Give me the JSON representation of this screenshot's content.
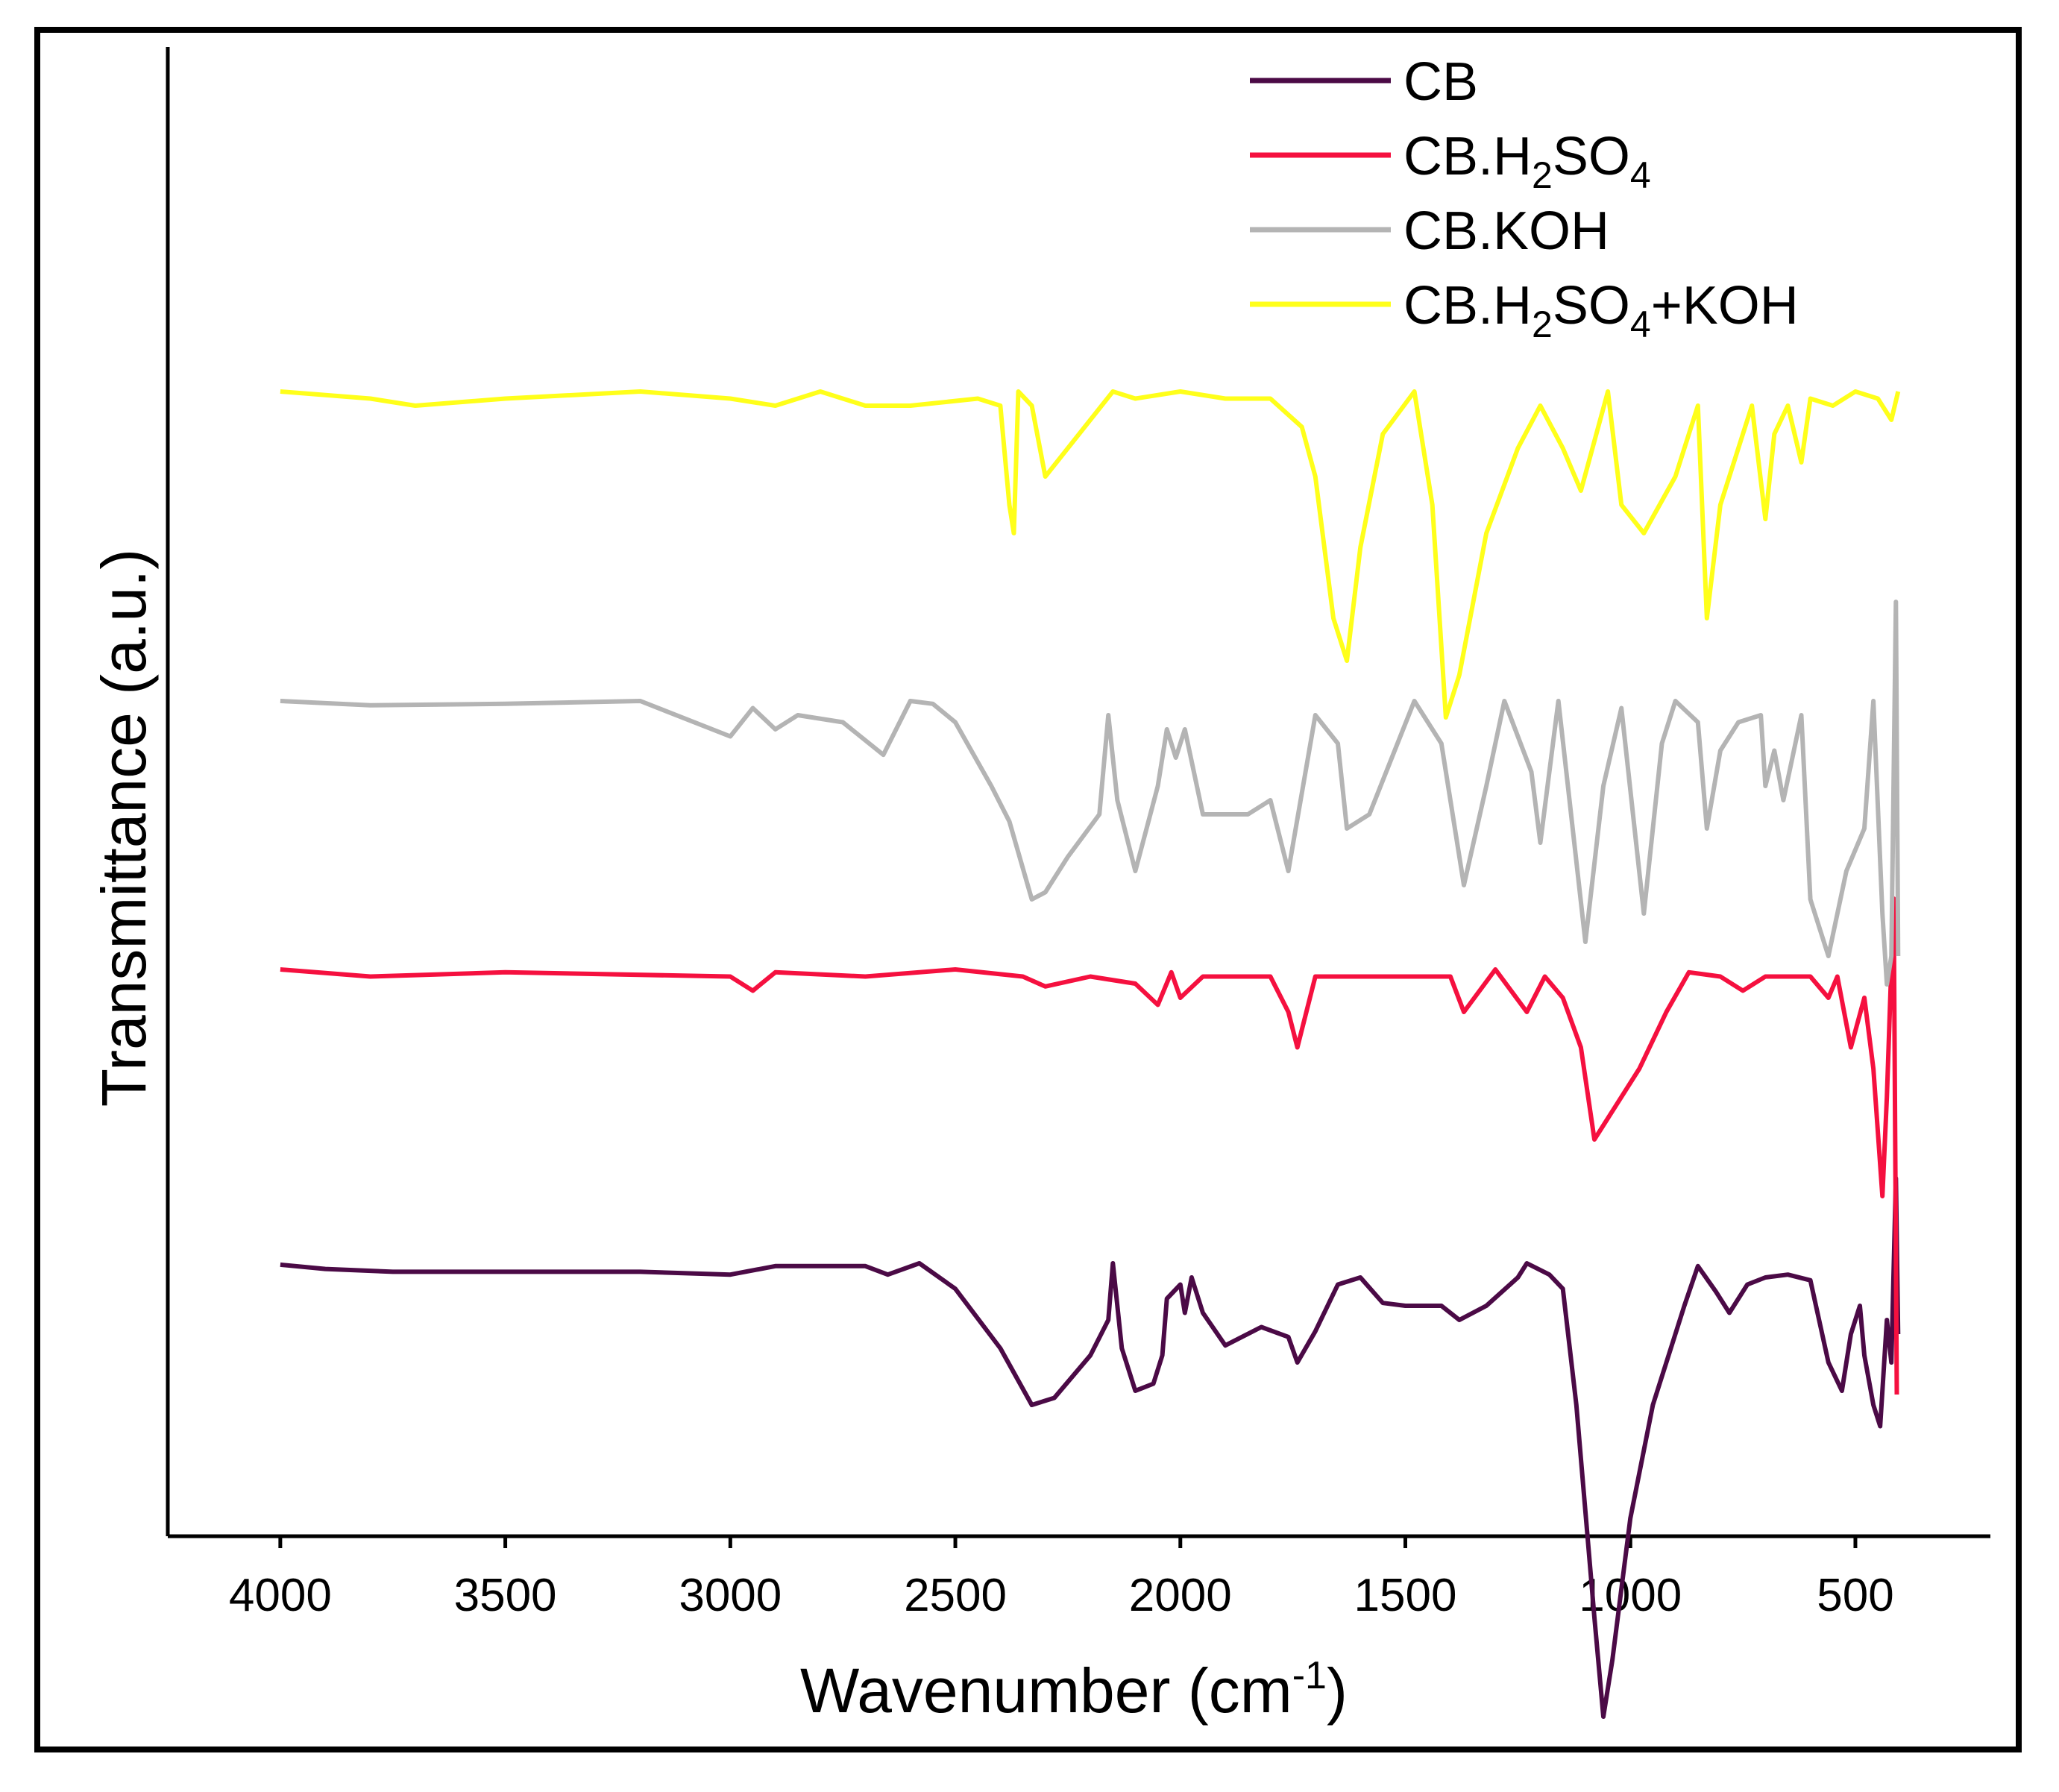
{
  "chart_data": {
    "type": "line",
    "title": "",
    "xlabel": "Wavenumber (cm⁻¹)",
    "xlabel_main": "Wavenumber (cm",
    "xlabel_sup": "-1",
    "xlabel_close": ")",
    "ylabel": "Transmittance (a.u.)",
    "xlim": [
      4250,
      200
    ],
    "x_reversed": true,
    "xticks": [
      4000,
      3500,
      3000,
      2500,
      2000,
      1500,
      1000,
      500
    ],
    "xtick_labels": [
      "4000",
      "3500",
      "3000",
      "2500",
      "2000",
      "1500",
      "1000",
      "500"
    ],
    "yticks_shown": false,
    "grid": false,
    "legend_position": "top-right",
    "series": [
      {
        "name": "CB",
        "legend_label": "CB",
        "color": "#4B0A46",
        "points": [
          [
            4000,
            0.11
          ],
          [
            3900,
            0.14
          ],
          [
            3750,
            0.16
          ],
          [
            3500,
            0.16
          ],
          [
            3200,
            0.16
          ],
          [
            3000,
            0.18
          ],
          [
            2900,
            0.12
          ],
          [
            2700,
            0.12
          ],
          [
            2650,
            0.18
          ],
          [
            2580,
            0.1
          ],
          [
            2500,
            0.28
          ],
          [
            2400,
            0.7
          ],
          [
            2330,
            1.1
          ],
          [
            2280,
            1.05
          ],
          [
            2200,
            0.75
          ],
          [
            2160,
            0.5
          ],
          [
            2150,
            0.1
          ],
          [
            2130,
            0.7
          ],
          [
            2100,
            1.0
          ],
          [
            2060,
            0.95
          ],
          [
            2040,
            0.75
          ],
          [
            2030,
            0.35
          ],
          [
            2000,
            0.25
          ],
          [
            1990,
            0.45
          ],
          [
            1975,
            0.2
          ],
          [
            1950,
            0.45
          ],
          [
            1900,
            0.68
          ],
          [
            1820,
            0.55
          ],
          [
            1760,
            0.62
          ],
          [
            1740,
            0.8
          ],
          [
            1700,
            0.58
          ],
          [
            1650,
            0.25
          ],
          [
            1600,
            0.2
          ],
          [
            1550,
            0.38
          ],
          [
            1500,
            0.4
          ],
          [
            1420,
            0.4
          ],
          [
            1380,
            0.5
          ],
          [
            1320,
            0.4
          ],
          [
            1250,
            0.2
          ],
          [
            1230,
            0.1
          ],
          [
            1180,
            0.18
          ],
          [
            1150,
            0.28
          ],
          [
            1120,
            1.1
          ],
          [
            1080,
            2.6
          ],
          [
            1060,
            3.3
          ],
          [
            1040,
            2.9
          ],
          [
            1000,
            1.9
          ],
          [
            950,
            1.1
          ],
          [
            880,
            0.4
          ],
          [
            850,
            0.12
          ],
          [
            810,
            0.3
          ],
          [
            780,
            0.45
          ],
          [
            740,
            0.25
          ],
          [
            700,
            0.2
          ],
          [
            650,
            0.18
          ],
          [
            600,
            0.22
          ],
          [
            560,
            0.8
          ],
          [
            530,
            1.0
          ],
          [
            510,
            0.6
          ],
          [
            490,
            0.4
          ],
          [
            480,
            0.75
          ],
          [
            460,
            1.1
          ],
          [
            445,
            1.25
          ],
          [
            430,
            0.5
          ],
          [
            420,
            0.8
          ],
          [
            410,
            -0.5
          ],
          [
            405,
            0.6
          ]
        ]
      },
      {
        "name": "CB.H2SO4",
        "legend_main": "CB.H",
        "legend_sub1": "2",
        "legend_mid": "SO",
        "legend_sub2": "4",
        "legend_tail": "",
        "color": "#F5103F",
        "points": [
          [
            4000,
            0.0
          ],
          [
            3800,
            0.05
          ],
          [
            3700,
            0.04
          ],
          [
            3500,
            0.02
          ],
          [
            3000,
            0.05
          ],
          [
            2950,
            0.15
          ],
          [
            2900,
            0.02
          ],
          [
            2700,
            0.05
          ],
          [
            2500,
            0.0
          ],
          [
            2350,
            0.05
          ],
          [
            2300,
            0.12
          ],
          [
            2200,
            0.05
          ],
          [
            2100,
            0.1
          ],
          [
            2050,
            0.25
          ],
          [
            2020,
            0.02
          ],
          [
            2000,
            0.2
          ],
          [
            1950,
            0.05
          ],
          [
            1800,
            0.05
          ],
          [
            1760,
            0.3
          ],
          [
            1740,
            0.55
          ],
          [
            1700,
            0.05
          ],
          [
            1500,
            0.05
          ],
          [
            1400,
            0.05
          ],
          [
            1370,
            0.3
          ],
          [
            1300,
            0.0
          ],
          [
            1230,
            0.3
          ],
          [
            1190,
            0.05
          ],
          [
            1150,
            0.2
          ],
          [
            1110,
            0.55
          ],
          [
            1080,
            1.2
          ],
          [
            1050,
            1.05
          ],
          [
            980,
            0.7
          ],
          [
            920,
            0.3
          ],
          [
            870,
            0.02
          ],
          [
            800,
            0.05
          ],
          [
            750,
            0.15
          ],
          [
            700,
            0.05
          ],
          [
            600,
            0.05
          ],
          [
            560,
            0.2
          ],
          [
            540,
            0.05
          ],
          [
            510,
            0.55
          ],
          [
            480,
            0.2
          ],
          [
            460,
            0.7
          ],
          [
            440,
            1.6
          ],
          [
            430,
            0.9
          ],
          [
            415,
            -0.5
          ],
          [
            408,
            3.0
          ]
        ]
      },
      {
        "name": "CB.KOH",
        "legend_main": "CB.KOH",
        "color": "#B4B4B4",
        "points": [
          [
            4000,
            0.0
          ],
          [
            3800,
            0.03
          ],
          [
            3500,
            0.02
          ],
          [
            3200,
            0.0
          ],
          [
            3000,
            0.25
          ],
          [
            2950,
            0.05
          ],
          [
            2900,
            0.2
          ],
          [
            2850,
            0.1
          ],
          [
            2750,
            0.15
          ],
          [
            2660,
            0.38
          ],
          [
            2600,
            0.0
          ],
          [
            2550,
            0.02
          ],
          [
            2500,
            0.15
          ],
          [
            2420,
            0.6
          ],
          [
            2380,
            0.85
          ],
          [
            2330,
            1.4
          ],
          [
            2300,
            1.35
          ],
          [
            2250,
            1.1
          ],
          [
            2180,
            0.8
          ],
          [
            2160,
            0.1
          ],
          [
            2140,
            0.7
          ],
          [
            2100,
            1.2
          ],
          [
            2050,
            0.6
          ],
          [
            2030,
            0.2
          ],
          [
            2010,
            0.4
          ],
          [
            1990,
            0.2
          ],
          [
            1950,
            0.8
          ],
          [
            1850,
            0.8
          ],
          [
            1800,
            0.7
          ],
          [
            1760,
            1.2
          ],
          [
            1700,
            0.1
          ],
          [
            1650,
            0.3
          ],
          [
            1630,
            0.9
          ],
          [
            1580,
            0.8
          ],
          [
            1480,
            0.0
          ],
          [
            1420,
            0.3
          ],
          [
            1370,
            1.3
          ],
          [
            1320,
            0.6
          ],
          [
            1280,
            0.0
          ],
          [
            1220,
            0.5
          ],
          [
            1200,
            1.0
          ],
          [
            1160,
            0.0
          ],
          [
            1100,
            1.7
          ],
          [
            1060,
            0.6
          ],
          [
            1020,
            0.05
          ],
          [
            970,
            1.5
          ],
          [
            930,
            0.3
          ],
          [
            900,
            0.0
          ],
          [
            850,
            0.15
          ],
          [
            830,
            0.9
          ],
          [
            800,
            0.35
          ],
          [
            760,
            0.15
          ],
          [
            710,
            0.1
          ],
          [
            700,
            0.6
          ],
          [
            680,
            0.35
          ],
          [
            660,
            0.7
          ],
          [
            640,
            0.4
          ],
          [
            620,
            0.1
          ],
          [
            600,
            1.4
          ],
          [
            560,
            1.8
          ],
          [
            520,
            1.2
          ],
          [
            480,
            0.9
          ],
          [
            460,
            0.0
          ],
          [
            440,
            1.5
          ],
          [
            430,
            2.0
          ],
          [
            420,
            1.8
          ],
          [
            410,
            -0.7
          ],
          [
            405,
            1.8
          ]
        ]
      },
      {
        "name": "CB.H2SO4+KOH",
        "legend_main": "CB.H",
        "legend_sub1": "2",
        "legend_mid": "SO",
        "legend_sub2": "4",
        "legend_tail": "+KOH",
        "color": "#FFFF1A",
        "points": [
          [
            4000,
            0.0
          ],
          [
            3800,
            0.05
          ],
          [
            3700,
            0.1
          ],
          [
            3500,
            0.05
          ],
          [
            3200,
            0.0
          ],
          [
            3000,
            0.05
          ],
          [
            2900,
            0.1
          ],
          [
            2800,
            0.0
          ],
          [
            2700,
            0.1
          ],
          [
            2600,
            0.1
          ],
          [
            2450,
            0.05
          ],
          [
            2400,
            0.1
          ],
          [
            2380,
            0.8
          ],
          [
            2370,
            1.0
          ],
          [
            2360,
            0.0
          ],
          [
            2330,
            0.1
          ],
          [
            2300,
            0.6
          ],
          [
            2200,
            0.2
          ],
          [
            2150,
            0.0
          ],
          [
            2100,
            0.05
          ],
          [
            2000,
            0.0
          ],
          [
            1900,
            0.05
          ],
          [
            1800,
            0.05
          ],
          [
            1730,
            0.25
          ],
          [
            1700,
            0.6
          ],
          [
            1660,
            1.6
          ],
          [
            1630,
            1.9
          ],
          [
            1600,
            1.1
          ],
          [
            1550,
            0.3
          ],
          [
            1480,
            0.0
          ],
          [
            1440,
            0.8
          ],
          [
            1410,
            2.3
          ],
          [
            1380,
            2.0
          ],
          [
            1320,
            1.0
          ],
          [
            1250,
            0.4
          ],
          [
            1200,
            0.1
          ],
          [
            1150,
            0.4
          ],
          [
            1110,
            0.7
          ],
          [
            1050,
            0.0
          ],
          [
            1020,
            0.8
          ],
          [
            970,
            1.0
          ],
          [
            900,
            0.6
          ],
          [
            850,
            0.1
          ],
          [
            830,
            1.6
          ],
          [
            800,
            0.8
          ],
          [
            730,
            0.1
          ],
          [
            700,
            0.9
          ],
          [
            680,
            0.3
          ],
          [
            650,
            0.1
          ],
          [
            620,
            0.5
          ],
          [
            600,
            0.05
          ],
          [
            550,
            0.1
          ],
          [
            500,
            0.0
          ],
          [
            450,
            0.05
          ],
          [
            420,
            0.2
          ],
          [
            405,
            0.0
          ]
        ]
      }
    ]
  }
}
